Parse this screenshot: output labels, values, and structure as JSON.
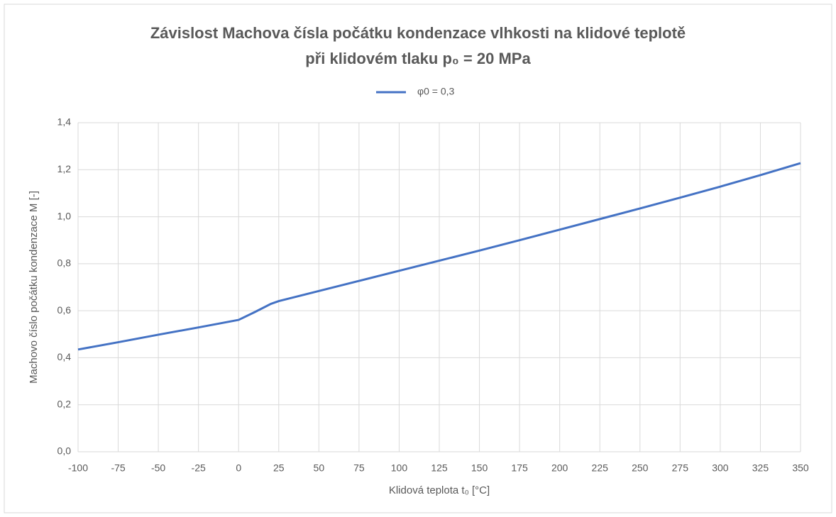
{
  "chart_data": {
    "type": "line",
    "title": [
      "Závislost Machova čísla počátku kondenzace vlhkosti na klidové teplotě",
      "při klidovém tlaku p₀ = 20 MPa"
    ],
    "xlabel": "Klidová teplota t₀ [°C]",
    "ylabel": "Machovo číslo počátku kondenzace M [-]",
    "x": [
      -100,
      -75,
      -50,
      -25,
      0,
      10,
      20,
      25,
      50,
      75,
      100,
      125,
      150,
      175,
      200,
      225,
      250,
      275,
      300,
      325,
      350
    ],
    "series": [
      {
        "name": "φ0 = 0,3",
        "color": "#4472c4",
        "values": [
          0.435,
          0.466,
          0.498,
          0.529,
          0.561,
          0.594,
          0.629,
          0.641,
          0.684,
          0.727,
          0.77,
          0.813,
          0.856,
          0.9,
          0.945,
          0.99,
          1.035,
          1.081,
          1.128,
          1.177,
          1.228
        ]
      }
    ],
    "xlim": [
      -100,
      350
    ],
    "xticks": [
      -100,
      -75,
      -50,
      -25,
      0,
      25,
      50,
      75,
      100,
      125,
      150,
      175,
      200,
      225,
      250,
      275,
      300,
      325,
      350
    ],
    "ylim": [
      0,
      1.4
    ],
    "yticks": [
      {
        "value": 0,
        "label": "0,0"
      },
      {
        "value": 0.2,
        "label": "0,2"
      },
      {
        "value": 0.4,
        "label": "0,4"
      },
      {
        "value": 0.6,
        "label": "0,6"
      },
      {
        "value": 0.8,
        "label": "0,8"
      },
      {
        "value": 1.0,
        "label": "1,0"
      },
      {
        "value": 1.2,
        "label": "1,2"
      },
      {
        "value": 1.4,
        "label": "1,4"
      }
    ],
    "grid": true,
    "legend": "top"
  }
}
